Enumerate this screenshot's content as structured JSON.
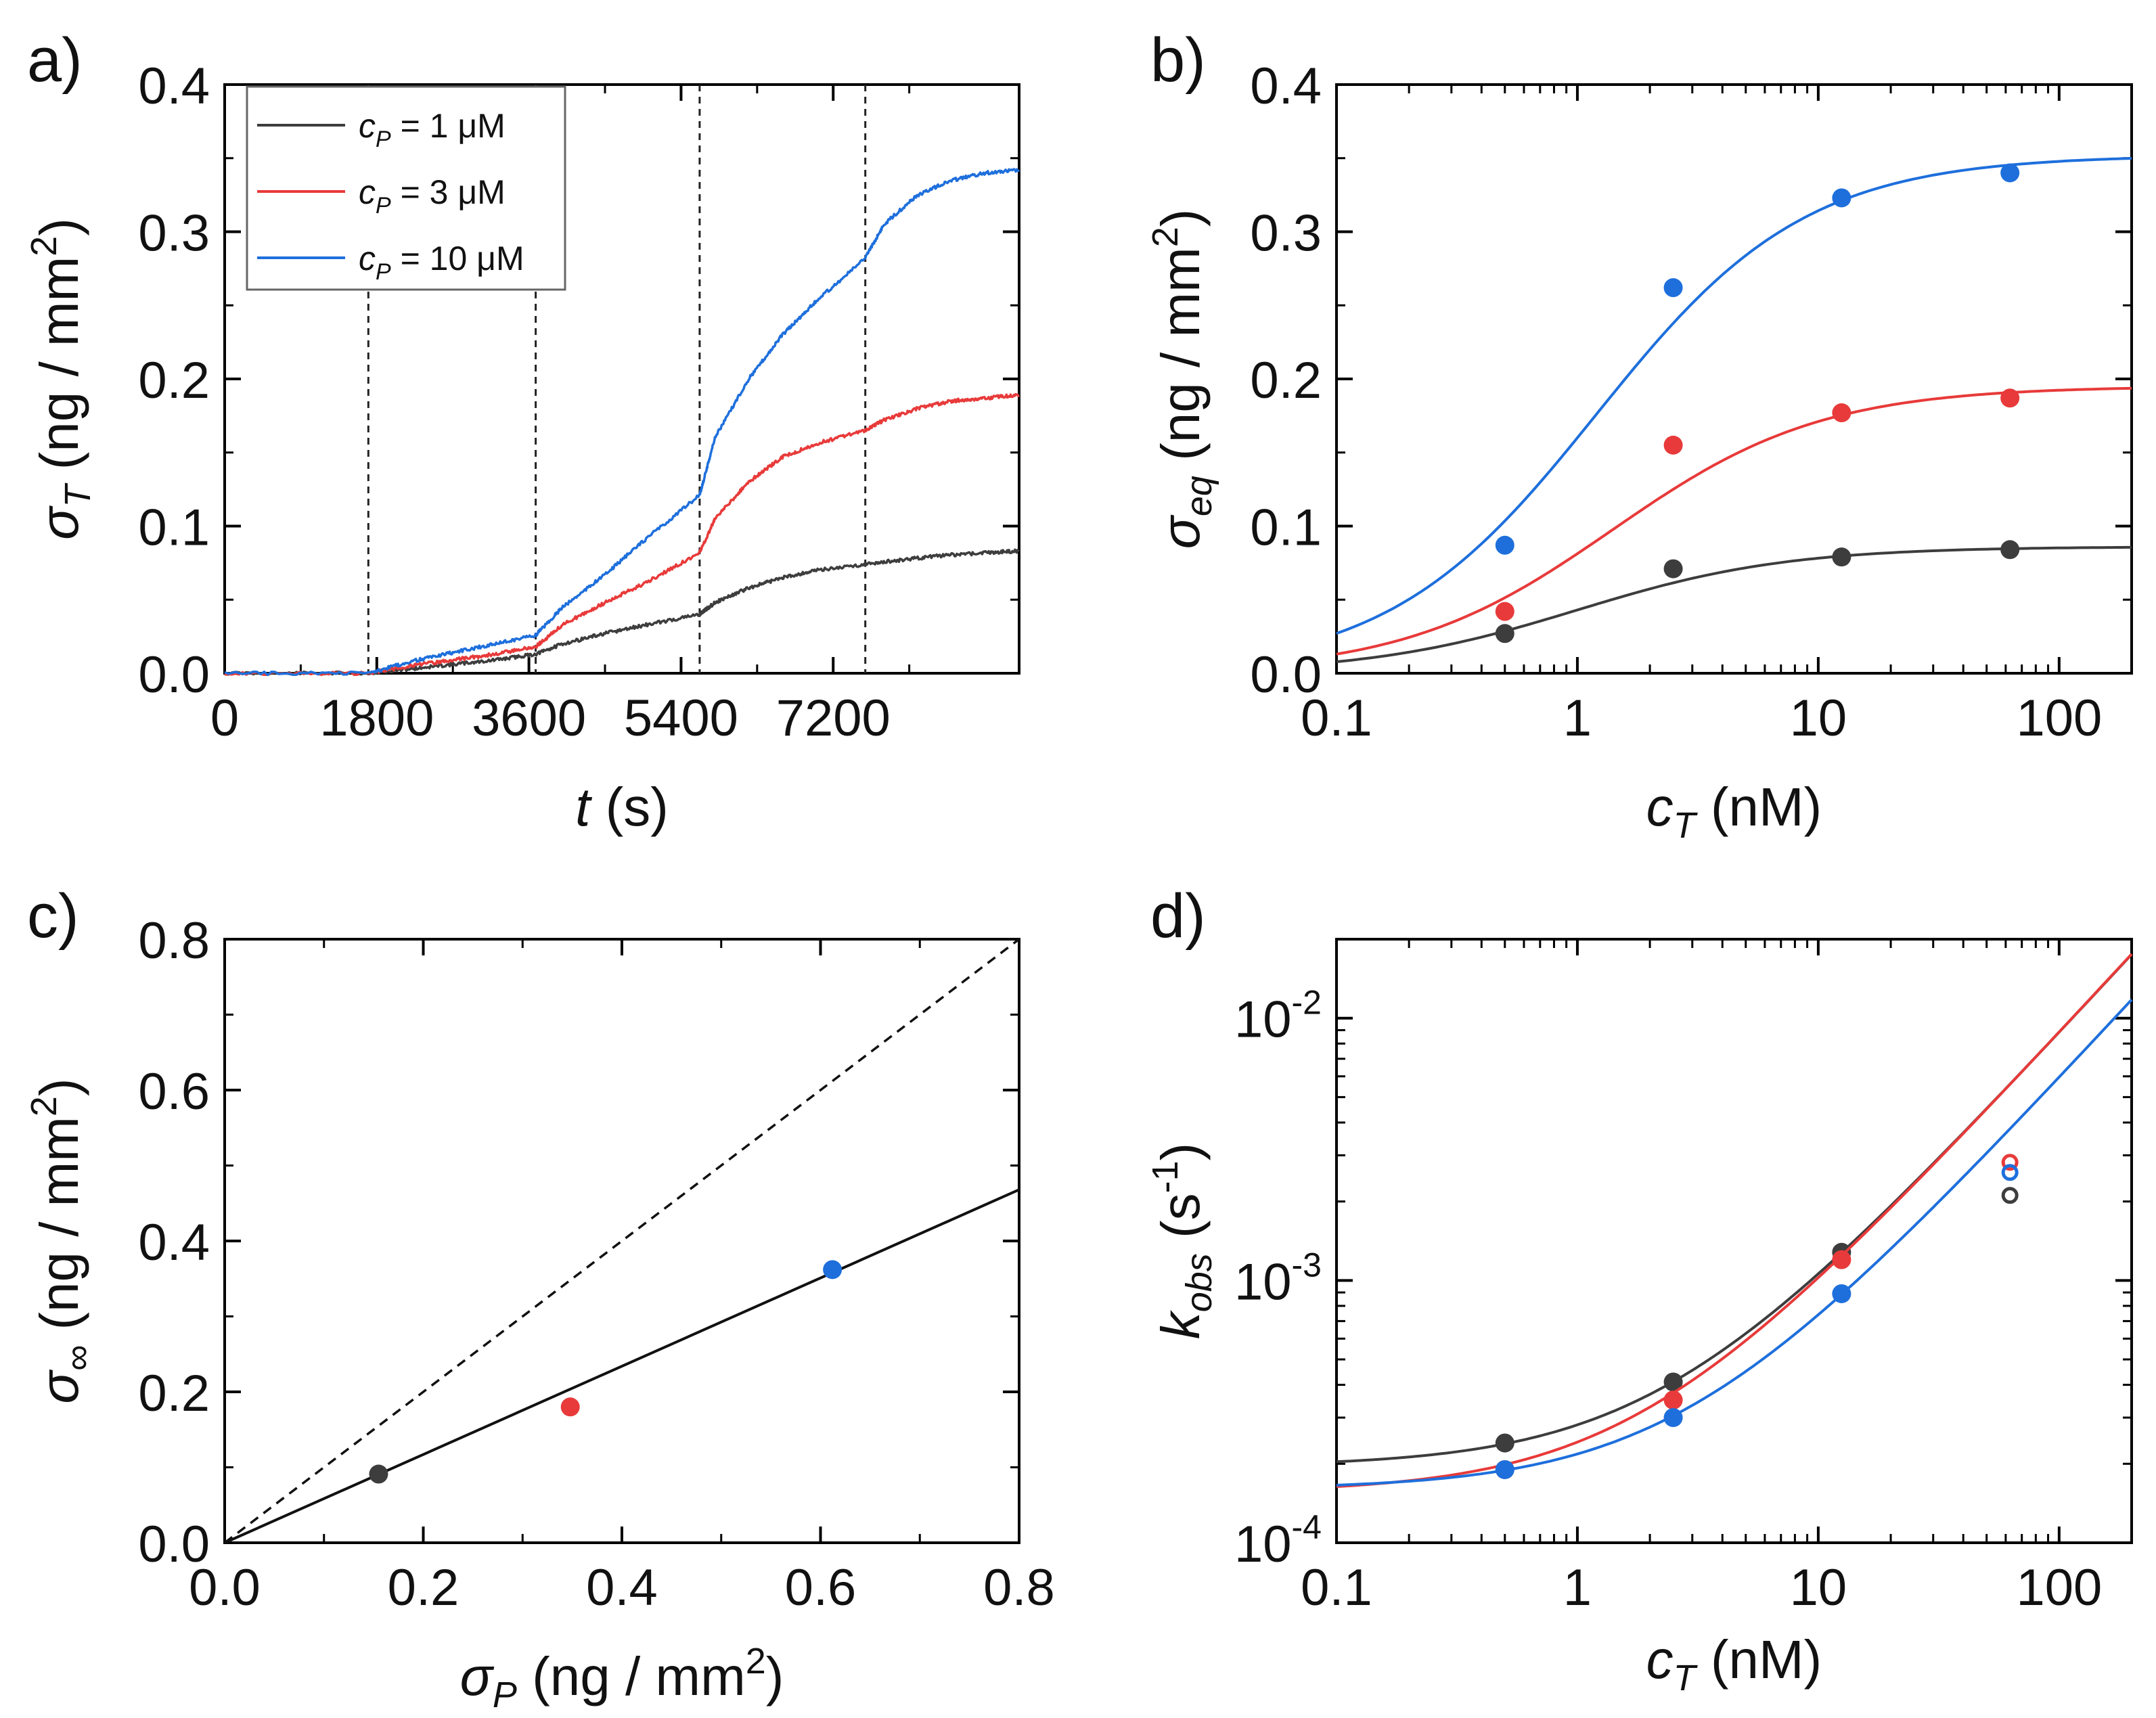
{
  "colors": {
    "black": "#3d3d3d",
    "red": "#e83a3a",
    "blue": "#1e6fdc",
    "axis": "#000000"
  },
  "chart_data": [
    {
      "panel_label": "a)",
      "type": "line",
      "xlabel_italic": "t",
      "xlabel_rest": " (s)",
      "ylabel_sym": "σ",
      "ylabel_sub": "T",
      "ylabel_rest": " (ng / mm",
      "ylabel_sup": "2",
      "ylabel_close": ")",
      "xlim": [
        0,
        9400
      ],
      "ylim": [
        0,
        0.4
      ],
      "xticks": [
        0,
        1800,
        3600,
        5400,
        7200
      ],
      "xtick_labels": [
        "0",
        "1800",
        "3600",
        "5400",
        "7200"
      ],
      "yticks": [
        0.0,
        0.1,
        0.2,
        0.3,
        0.4
      ],
      "ytick_labels": [
        "0.0",
        "0.1",
        "0.2",
        "0.3",
        "0.4"
      ],
      "vlines": [
        1700,
        3680,
        5620,
        7580
      ],
      "legend_position": "top-left",
      "series": [
        {
          "legend_pre": "c",
          "legend_sub": "P",
          "legend_post": " = 1 μM",
          "color_key": "black",
          "x": [
            0,
            1700,
            2200,
            2700,
            3200,
            3680,
            4000,
            4500,
            5000,
            5620,
            5800,
            6200,
            6600,
            7000,
            7580,
            8000,
            8500,
            9000,
            9400
          ],
          "y": [
            0,
            0,
            0.003,
            0.006,
            0.009,
            0.013,
            0.02,
            0.027,
            0.033,
            0.04,
            0.048,
            0.058,
            0.065,
            0.07,
            0.074,
            0.077,
            0.08,
            0.082,
            0.083
          ]
        },
        {
          "legend_pre": "c",
          "legend_sub": "P",
          "legend_post": " = 3 μM",
          "color_key": "red",
          "x": [
            0,
            1700,
            2200,
            2700,
            3200,
            3680,
            4000,
            4500,
            5000,
            5620,
            5800,
            6200,
            6600,
            7000,
            7580,
            7800,
            8200,
            8600,
            9000,
            9400
          ],
          "y": [
            0,
            0,
            0.005,
            0.009,
            0.013,
            0.018,
            0.033,
            0.048,
            0.062,
            0.082,
            0.105,
            0.13,
            0.147,
            0.156,
            0.165,
            0.172,
            0.18,
            0.185,
            0.187,
            0.189
          ]
        },
        {
          "legend_pre": "c",
          "legend_sub": "P",
          "legend_post": " = 10 μM",
          "color_key": "blue",
          "x": [
            0,
            1700,
            2200,
            2700,
            3200,
            3680,
            4000,
            4500,
            5000,
            5620,
            5800,
            6200,
            6600,
            7000,
            7580,
            7800,
            8200,
            8600,
            9000,
            9400
          ],
          "y": [
            0,
            0,
            0.008,
            0.014,
            0.02,
            0.026,
            0.045,
            0.067,
            0.092,
            0.121,
            0.16,
            0.2,
            0.23,
            0.253,
            0.282,
            0.305,
            0.325,
            0.335,
            0.34,
            0.342
          ]
        }
      ]
    },
    {
      "panel_label": "b)",
      "type": "scatter",
      "xscale": "log",
      "xlabel_italic": "c",
      "xlabel_sub": "T",
      "xlabel_rest": " (nM)",
      "ylabel_sym": "σ",
      "ylabel_sub": "eq",
      "ylabel_rest": " (ng / mm",
      "ylabel_sup": "2",
      "ylabel_close": ")",
      "xlim": [
        0.1,
        200
      ],
      "ylim": [
        0,
        0.4
      ],
      "xticks": [
        0.1,
        1,
        10,
        100
      ],
      "xtick_labels": [
        "0.1",
        "1",
        "10",
        "100"
      ],
      "yticks": [
        0.0,
        0.1,
        0.2,
        0.3,
        0.4
      ],
      "ytick_labels": [
        "0.0",
        "0.1",
        "0.2",
        "0.3",
        "0.4"
      ],
      "series": [
        {
          "color_key": "black",
          "x": [
            0.5,
            2.5,
            12.5,
            62.5
          ],
          "y": [
            0.027,
            0.071,
            0.079,
            0.084
          ],
          "fit_max": 0.086,
          "fit_kd": 1.0
        },
        {
          "color_key": "red",
          "x": [
            0.5,
            2.5,
            12.5,
            62.5
          ],
          "y": [
            0.042,
            0.155,
            0.177,
            0.187
          ],
          "fit_max": 0.195,
          "fit_kd": 1.4
        },
        {
          "color_key": "blue",
          "x": [
            0.5,
            2.5,
            12.5,
            62.5
          ],
          "y": [
            0.087,
            0.262,
            0.323,
            0.34
          ],
          "fit_max": 0.352,
          "fit_kd": 1.2
        }
      ]
    },
    {
      "panel_label": "c)",
      "type": "scatter",
      "xlabel_sym": "σ",
      "xlabel_sub": "P",
      "xlabel_rest": " (ng / mm",
      "xlabel_sup": "2",
      "xlabel_close": ")",
      "ylabel_sym": "σ",
      "ylabel_sub": "∞",
      "ylabel_rest": " (ng / mm",
      "ylabel_sup": "2",
      "ylabel_close": ")",
      "xlim": [
        0,
        0.8
      ],
      "ylim": [
        0,
        0.8
      ],
      "xticks": [
        0.0,
        0.2,
        0.4,
        0.6,
        0.8
      ],
      "xtick_labels": [
        "0.0",
        "0.2",
        "0.4",
        "0.6",
        "0.8"
      ],
      "yticks": [
        0.0,
        0.2,
        0.4,
        0.6,
        0.8
      ],
      "ytick_labels": [
        "0.0",
        "0.2",
        "0.4",
        "0.6",
        "0.8"
      ],
      "fit_slope": 0.585,
      "identity_line": true,
      "points": [
        {
          "color_key": "black",
          "x": 0.155,
          "y": 0.091
        },
        {
          "color_key": "red",
          "x": 0.348,
          "y": 0.18
        },
        {
          "color_key": "blue",
          "x": 0.612,
          "y": 0.362
        }
      ]
    },
    {
      "panel_label": "d)",
      "type": "scatter",
      "xscale": "log",
      "yscale": "log",
      "xlabel_italic": "c",
      "xlabel_sub": "T",
      "xlabel_rest": " (nM)",
      "ylabel_sym": "k",
      "ylabel_sub": "obs",
      "ylabel_rest": " (s",
      "ylabel_sup": "-1",
      "ylabel_close": ")",
      "xlim": [
        0.1,
        200
      ],
      "ylim": [
        0.0001,
        0.02
      ],
      "xticks": [
        0.1,
        1,
        10,
        100
      ],
      "xtick_labels": [
        "0.1",
        "1",
        "10",
        "100"
      ],
      "yticks": [
        0.0001,
        0.001,
        0.01
      ],
      "ytick_base": "10",
      "ytick_exponents": [
        "-4",
        "-3",
        "-2"
      ],
      "series": [
        {
          "color_key": "black",
          "x": [
            0.5,
            2.5,
            12.5
          ],
          "y": [
            0.00024,
            0.00041,
            0.00128
          ],
          "open_x": 62.5,
          "open_y": 0.00211,
          "fit_kd": 0.000195,
          "fit_kon": 8.65e-05
        },
        {
          "color_key": "red",
          "x": [
            0.5,
            2.5,
            12.5
          ],
          "y": [
            0.00019,
            0.00035,
            0.0012
          ],
          "open_x": 62.5,
          "open_y": 0.00282,
          "fit_kd": 0.000155,
          "fit_kon": 8.7e-05
        },
        {
          "color_key": "blue",
          "x": [
            0.5,
            2.5,
            12.5
          ],
          "y": [
            0.00019,
            0.0003,
            0.00089
          ],
          "open_x": 62.5,
          "open_y": 0.00258,
          "fit_kd": 0.00016,
          "fit_kon": 5.8e-05
        }
      ]
    }
  ]
}
